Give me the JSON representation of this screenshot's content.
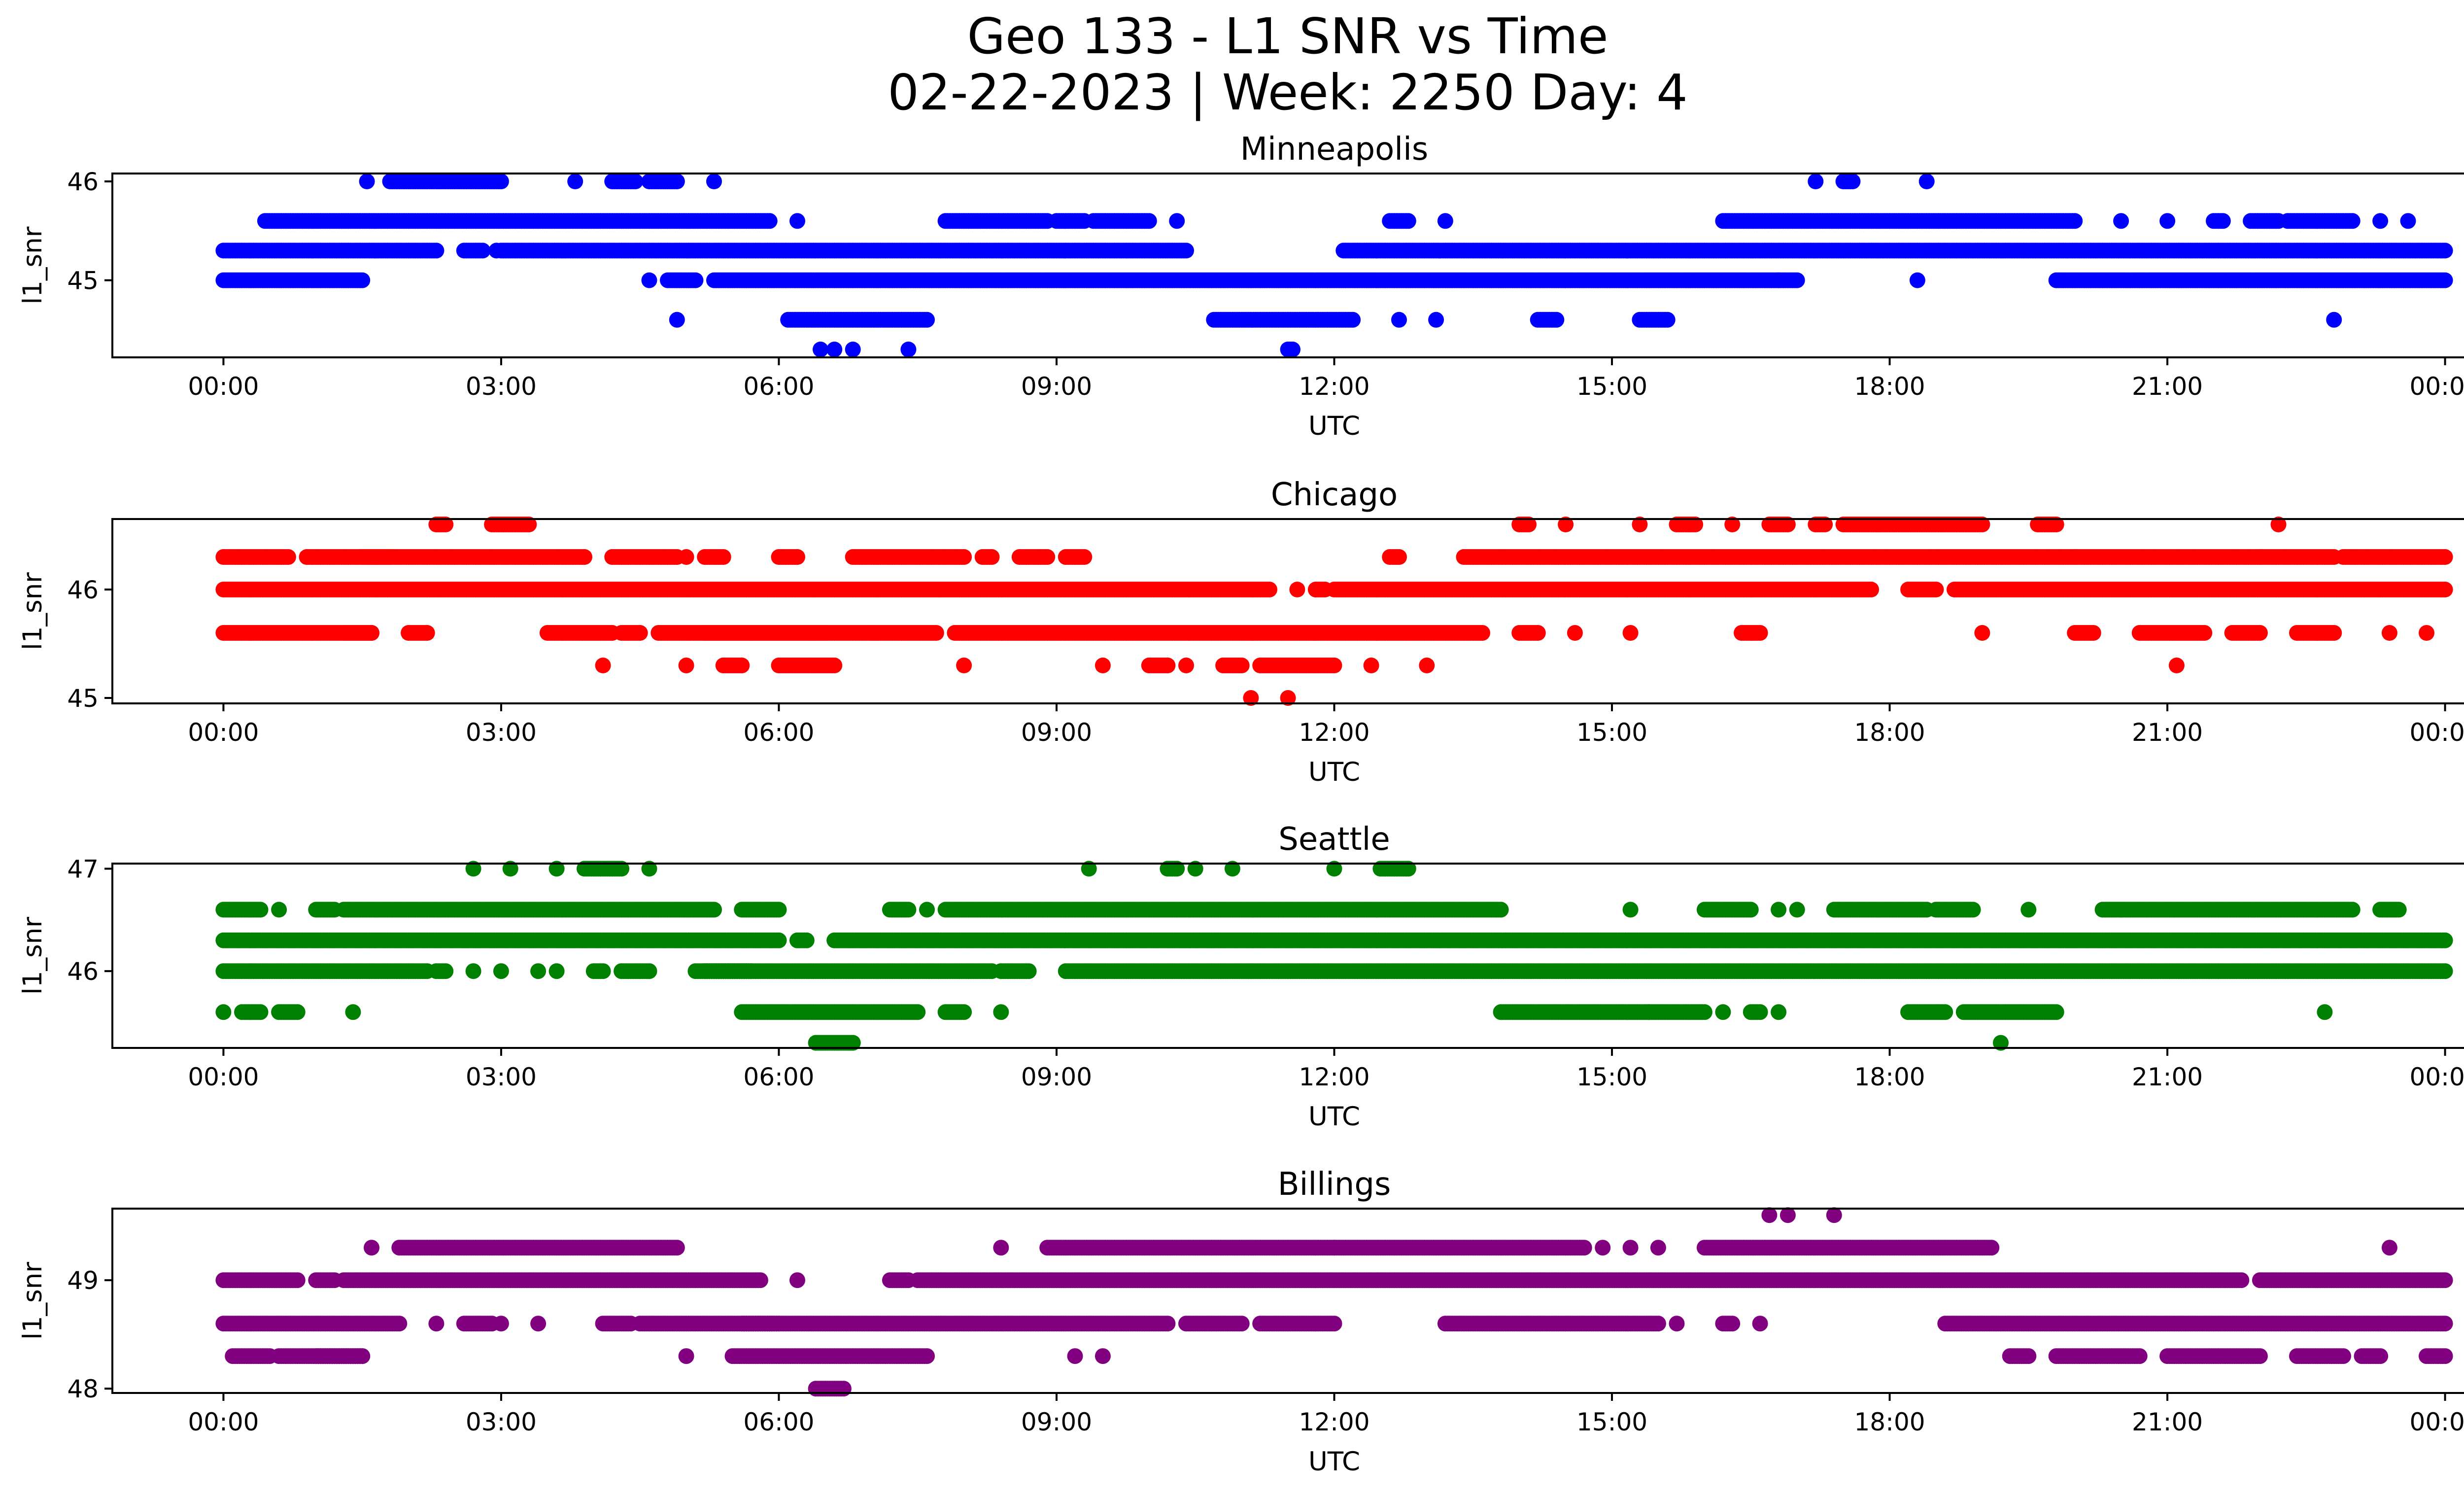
{
  "figure": {
    "title_line1": "Geo 133 - L1 SNR vs Time",
    "title_line2": "02-22-2023 | Week: 2250 Day: 4"
  },
  "chart_data": [
    {
      "type": "scatter",
      "title": "Minneapolis",
      "xlabel": "UTC",
      "ylabel": "l1_snr",
      "color": "#0000ff",
      "xlim_hours": [
        -1.2,
        25.2
      ],
      "ylim": [
        44.22,
        46.08
      ],
      "x_ticks": [
        "00:00",
        "03:00",
        "06:00",
        "09:00",
        "12:00",
        "15:00",
        "18:00",
        "21:00",
        "00:00"
      ],
      "y_ticks": [
        {
          "value": 45,
          "label": "45"
        },
        {
          "value": 46,
          "label": "46"
        }
      ],
      "bands": [
        {
          "y": 46.0,
          "ranges": [
            [
              1.55,
              1.55
            ],
            [
              1.8,
              3.0
            ],
            [
              3.8,
              3.8
            ],
            [
              4.2,
              4.45
            ],
            [
              4.6,
              4.9
            ],
            [
              5.3,
              5.3
            ],
            [
              17.2,
              17.2
            ],
            [
              17.5,
              17.6
            ],
            [
              18.4,
              18.4
            ]
          ]
        },
        {
          "y": 45.6,
          "ranges": [
            [
              0.45,
              5.9
            ],
            [
              6.2,
              6.2
            ],
            [
              7.8,
              8.9
            ],
            [
              9.0,
              9.3
            ],
            [
              9.4,
              10.0
            ],
            [
              10.3,
              10.3
            ],
            [
              12.6,
              12.8
            ],
            [
              13.2,
              13.2
            ],
            [
              16.2,
              20.0
            ],
            [
              20.5,
              20.5
            ],
            [
              21.0,
              21.0
            ],
            [
              21.5,
              21.6
            ],
            [
              21.9,
              22.2
            ],
            [
              22.3,
              23.0
            ],
            [
              23.3,
              23.3
            ],
            [
              23.6,
              23.6
            ]
          ]
        },
        {
          "y": 45.3,
          "ranges": [
            [
              0.0,
              2.3
            ],
            [
              2.6,
              2.8
            ],
            [
              2.95,
              2.95
            ],
            [
              3.0,
              10.4
            ],
            [
              12.1,
              24.0
            ]
          ]
        },
        {
          "y": 45.0,
          "ranges": [
            [
              0.0,
              1.5
            ],
            [
              4.6,
              4.6
            ],
            [
              4.8,
              5.1
            ],
            [
              5.3,
              16.8
            ],
            [
              16.8,
              17.0
            ],
            [
              18.3,
              18.3
            ],
            [
              19.8,
              24.0
            ]
          ]
        },
        {
          "y": 44.6,
          "ranges": [
            [
              4.9,
              4.9
            ],
            [
              6.1,
              7.6
            ],
            [
              10.7,
              12.2
            ],
            [
              12.7,
              12.7
            ],
            [
              13.1,
              13.1
            ],
            [
              14.2,
              14.4
            ],
            [
              15.3,
              15.6
            ],
            [
              22.8,
              22.8
            ]
          ]
        },
        {
          "y": 44.3,
          "ranges": [
            [
              6.45,
              6.45
            ],
            [
              6.6,
              6.6
            ],
            [
              6.8,
              6.8
            ],
            [
              7.4,
              7.4
            ],
            [
              11.5,
              11.55
            ]
          ]
        }
      ]
    },
    {
      "type": "scatter",
      "title": "Chicago",
      "xlabel": "UTC",
      "ylabel": "l1_snr",
      "color": "#ff0000",
      "xlim_hours": [
        -1.2,
        25.2
      ],
      "ylim": [
        44.95,
        46.65
      ],
      "x_ticks": [
        "00:00",
        "03:00",
        "06:00",
        "09:00",
        "12:00",
        "15:00",
        "18:00",
        "21:00",
        "00:00"
      ],
      "y_ticks": [
        {
          "value": 45,
          "label": "45"
        },
        {
          "value": 46,
          "label": "46"
        }
      ],
      "bands": [
        {
          "y": 46.6,
          "ranges": [
            [
              2.3,
              2.4
            ],
            [
              2.9,
              3.3
            ],
            [
              14.0,
              14.1
            ],
            [
              14.5,
              14.5
            ],
            [
              15.3,
              15.3
            ],
            [
              15.7,
              15.9
            ],
            [
              16.3,
              16.3
            ],
            [
              16.7,
              16.9
            ],
            [
              17.2,
              17.3
            ],
            [
              17.5,
              19.0
            ],
            [
              19.6,
              19.8
            ],
            [
              22.2,
              22.2
            ]
          ]
        },
        {
          "y": 46.3,
          "ranges": [
            [
              0.0,
              0.7
            ],
            [
              0.9,
              1.8
            ],
            [
              1.5,
              3.9
            ],
            [
              4.2,
              4.9
            ],
            [
              5.0,
              5.0
            ],
            [
              5.2,
              5.4
            ],
            [
              6.0,
              6.2
            ],
            [
              6.8,
              8.0
            ],
            [
              8.2,
              8.3
            ],
            [
              8.6,
              8.9
            ],
            [
              9.1,
              9.3
            ],
            [
              12.6,
              12.7
            ],
            [
              13.4,
              20.0
            ],
            [
              20.0,
              22.0
            ],
            [
              22.0,
              22.8
            ],
            [
              22.9,
              24.0
            ]
          ]
        },
        {
          "y": 46.0,
          "ranges": [
            [
              0.0,
              11.3
            ],
            [
              11.6,
              11.6
            ],
            [
              11.8,
              11.9
            ],
            [
              12.0,
              17.8
            ],
            [
              18.2,
              18.5
            ],
            [
              18.7,
              24.0
            ]
          ]
        },
        {
          "y": 45.6,
          "ranges": [
            [
              0.0,
              1.6
            ],
            [
              1.3,
              1.6
            ],
            [
              2.0,
              2.2
            ],
            [
              3.5,
              4.2
            ],
            [
              4.3,
              4.5
            ],
            [
              4.7,
              6.5
            ],
            [
              5.2,
              7.0
            ],
            [
              7.0,
              7.7
            ],
            [
              7.9,
              13.6
            ],
            [
              14.0,
              14.2
            ],
            [
              14.6,
              14.6
            ],
            [
              15.2,
              15.2
            ],
            [
              16.4,
              16.6
            ],
            [
              19.0,
              19.0
            ],
            [
              20.0,
              20.2
            ],
            [
              20.7,
              21.4
            ],
            [
              21.7,
              22.0
            ],
            [
              22.4,
              22.8
            ],
            [
              23.4,
              23.4
            ],
            [
              23.8,
              23.8
            ]
          ]
        },
        {
          "y": 45.3,
          "ranges": [
            [
              4.1,
              4.1
            ],
            [
              5.0,
              5.0
            ],
            [
              5.4,
              5.6
            ],
            [
              6.0,
              6.6
            ],
            [
              8.0,
              8.0
            ],
            [
              9.5,
              9.5
            ],
            [
              10.0,
              10.2
            ],
            [
              10.4,
              10.4
            ],
            [
              10.8,
              11.0
            ],
            [
              11.2,
              12.0
            ],
            [
              12.4,
              12.4
            ],
            [
              13.0,
              13.0
            ],
            [
              21.1,
              21.1
            ]
          ]
        },
        {
          "y": 45.0,
          "ranges": [
            [
              11.1,
              11.1
            ],
            [
              11.5,
              11.5
            ]
          ]
        }
      ]
    },
    {
      "type": "scatter",
      "title": "Seattle",
      "xlabel": "UTC",
      "ylabel": "l1_snr",
      "color": "#008000",
      "xlim_hours": [
        -1.2,
        25.2
      ],
      "ylim": [
        45.25,
        47.05
      ],
      "x_ticks": [
        "00:00",
        "03:00",
        "06:00",
        "09:00",
        "12:00",
        "15:00",
        "18:00",
        "21:00",
        "00:00"
      ],
      "y_ticks": [
        {
          "value": 46,
          "label": "46"
        },
        {
          "value": 47,
          "label": "47"
        }
      ],
      "bands": [
        {
          "y": 47.0,
          "ranges": [
            [
              2.7,
              2.7
            ],
            [
              3.1,
              3.1
            ],
            [
              3.6,
              3.6
            ],
            [
              3.9,
              4.3
            ],
            [
              4.6,
              4.6
            ],
            [
              9.35,
              9.35
            ],
            [
              10.2,
              10.3
            ],
            [
              10.5,
              10.5
            ],
            [
              10.9,
              10.9
            ],
            [
              12.0,
              12.0
            ],
            [
              12.5,
              12.8
            ]
          ]
        },
        {
          "y": 46.6,
          "ranges": [
            [
              0.0,
              0.4
            ],
            [
              0.6,
              0.6
            ],
            [
              1.0,
              1.2
            ],
            [
              1.3,
              5.3
            ],
            [
              5.6,
              6.0
            ],
            [
              7.2,
              7.4
            ],
            [
              7.6,
              7.6
            ],
            [
              7.8,
              13.8
            ],
            [
              15.2,
              15.2
            ],
            [
              16.0,
              16.5
            ],
            [
              16.8,
              16.8
            ],
            [
              17.0,
              17.0
            ],
            [
              17.4,
              18.4
            ],
            [
              18.5,
              18.9
            ],
            [
              19.5,
              19.5
            ],
            [
              20.3,
              20.5
            ],
            [
              20.5,
              23.0
            ],
            [
              23.3,
              23.5
            ]
          ]
        },
        {
          "y": 46.3,
          "ranges": [
            [
              0.0,
              6.0
            ],
            [
              6.2,
              6.3
            ],
            [
              6.6,
              24.0
            ]
          ]
        },
        {
          "y": 46.0,
          "ranges": [
            [
              0.0,
              2.2
            ],
            [
              2.3,
              2.4
            ],
            [
              2.7,
              2.7
            ],
            [
              3.0,
              3.0
            ],
            [
              3.4,
              3.4
            ],
            [
              3.6,
              3.6
            ],
            [
              4.0,
              4.1
            ],
            [
              4.3,
              4.6
            ],
            [
              5.2,
              5.7
            ],
            [
              5.1,
              8.3
            ],
            [
              8.4,
              8.7
            ],
            [
              9.1,
              24.0
            ]
          ]
        },
        {
          "y": 45.6,
          "ranges": [
            [
              0.0,
              0.0
            ],
            [
              0.2,
              0.4
            ],
            [
              0.6,
              0.8
            ],
            [
              1.4,
              1.4
            ],
            [
              5.6,
              7.5
            ],
            [
              7.8,
              8.0
            ],
            [
              8.4,
              8.4
            ],
            [
              13.8,
              15.4
            ],
            [
              15.4,
              16.0
            ],
            [
              16.2,
              16.2
            ],
            [
              16.5,
              16.6
            ],
            [
              16.8,
              16.8
            ],
            [
              18.2,
              18.6
            ],
            [
              18.8,
              19.8
            ],
            [
              22.7,
              22.7
            ]
          ]
        },
        {
          "y": 45.3,
          "ranges": [
            [
              6.4,
              6.8
            ],
            [
              19.2,
              19.2
            ]
          ]
        }
      ]
    },
    {
      "type": "scatter",
      "title": "Billings",
      "xlabel": "UTC",
      "ylabel": "l1_snr",
      "color": "#800080",
      "xlim_hours": [
        -1.2,
        25.2
      ],
      "ylim": [
        47.96,
        49.66
      ],
      "x_ticks": [
        "00:00",
        "03:00",
        "06:00",
        "09:00",
        "12:00",
        "15:00",
        "18:00",
        "21:00",
        "00:00"
      ],
      "y_ticks": [
        {
          "value": 48,
          "label": "48"
        },
        {
          "value": 49,
          "label": "49"
        }
      ],
      "bands": [
        {
          "y": 49.6,
          "ranges": [
            [
              16.7,
              16.7
            ],
            [
              16.9,
              16.9
            ],
            [
              17.4,
              17.4
            ]
          ]
        },
        {
          "y": 49.3,
          "ranges": [
            [
              1.6,
              1.6
            ],
            [
              1.9,
              4.9
            ],
            [
              8.4,
              8.4
            ],
            [
              8.9,
              12.0
            ],
            [
              12.0,
              14.7
            ],
            [
              14.9,
              14.9
            ],
            [
              15.2,
              15.2
            ],
            [
              15.5,
              15.5
            ],
            [
              16.0,
              19.1
            ],
            [
              23.4,
              23.4
            ]
          ]
        },
        {
          "y": 49.0,
          "ranges": [
            [
              0.0,
              0.8
            ],
            [
              1.0,
              1.2
            ],
            [
              1.3,
              5.8
            ],
            [
              6.2,
              6.2
            ],
            [
              7.2,
              7.4
            ],
            [
              7.5,
              21.8
            ],
            [
              22.0,
              24.0
            ]
          ]
        },
        {
          "y": 48.6,
          "ranges": [
            [
              0.0,
              1.9
            ],
            [
              2.3,
              2.3
            ],
            [
              2.6,
              2.9
            ],
            [
              3.0,
              3.0
            ],
            [
              3.4,
              3.4
            ],
            [
              4.1,
              4.4
            ],
            [
              4.5,
              6.0
            ],
            [
              5.6,
              10.2
            ],
            [
              10.4,
              11.0
            ],
            [
              11.2,
              12.0
            ],
            [
              13.2,
              15.5
            ],
            [
              15.7,
              15.7
            ],
            [
              16.2,
              16.3
            ],
            [
              16.6,
              16.6
            ],
            [
              18.6,
              24.0
            ]
          ]
        },
        {
          "y": 48.3,
          "ranges": [
            [
              0.1,
              0.5
            ],
            [
              0.6,
              1.5
            ],
            [
              1.0,
              1.5
            ],
            [
              5.0,
              5.0
            ],
            [
              5.5,
              7.6
            ],
            [
              9.2,
              9.2
            ],
            [
              9.5,
              9.5
            ],
            [
              19.3,
              19.5
            ],
            [
              19.8,
              20.7
            ],
            [
              21.0,
              22.0
            ],
            [
              22.4,
              22.9
            ],
            [
              23.1,
              23.3
            ],
            [
              23.8,
              24.0
            ]
          ]
        },
        {
          "y": 48.0,
          "ranges": [
            [
              6.4,
              6.7
            ]
          ]
        }
      ]
    }
  ]
}
